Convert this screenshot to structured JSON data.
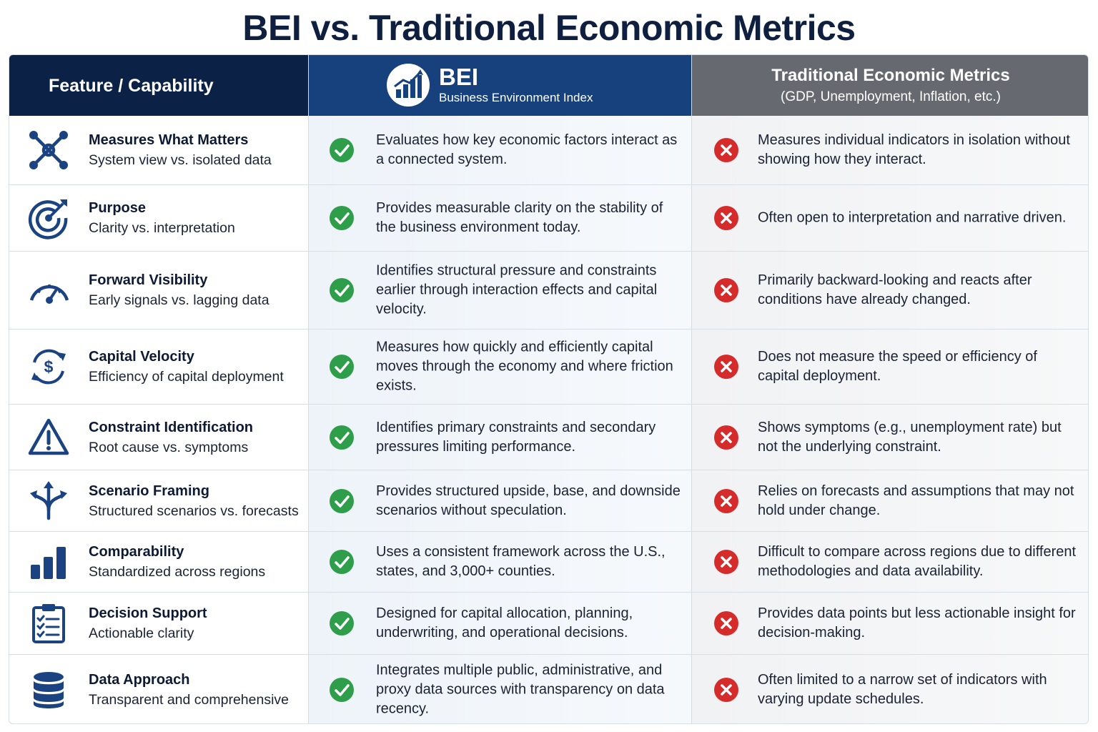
{
  "title": "BEI vs. Traditional Economic Metrics",
  "header": {
    "feature_label": "Feature / Capability",
    "bei_name": "BEI",
    "bei_subtitle": "Business Environment Index",
    "traditional_title": "Traditional Economic Metrics",
    "traditional_subtitle": "(GDP, Unemployment, Inflation, etc.)"
  },
  "colors": {
    "navy": "#0c2146",
    "bei_blue": "#17417c",
    "traditional_gray": "#66696f",
    "check_green": "#2e9e4a",
    "cross_red": "#d52b2b",
    "icon_blue": "#1b4381"
  },
  "rows": [
    {
      "icon": "network-icon",
      "title": "Measures What Matters",
      "subtitle": "System view vs. isolated data",
      "bei": "Evaluates how key economic factors interact as a connected system.",
      "traditional": "Measures individual indicators in isolation without showing how they interact."
    },
    {
      "icon": "target-icon",
      "title": "Purpose",
      "subtitle": "Clarity vs. interpretation",
      "bei": "Provides measurable clarity on the stability of the business environment today.",
      "traditional": "Often open to interpretation and narrative driven."
    },
    {
      "icon": "gauge-icon",
      "title": "Forward Visibility",
      "subtitle": "Early signals vs. lagging data",
      "bei": "Identifies structural pressure and constraints earlier through interaction effects and capital velocity.",
      "traditional": "Primarily backward-looking and reacts after conditions have already changed."
    },
    {
      "icon": "dollar-cycle-icon",
      "title": "Capital Velocity",
      "subtitle": "Efficiency of capital deployment",
      "bei": "Measures how quickly and efficiently capital moves through the economy and where friction exists.",
      "traditional": "Does not measure the speed or efficiency of capital deployment."
    },
    {
      "icon": "warning-icon",
      "title": "Constraint Identification",
      "subtitle": "Root cause vs. symptoms",
      "bei": "Identifies primary constraints and secondary pressures limiting performance.",
      "traditional": "Shows symptoms (e.g., unemployment rate) but not the underlying constraint."
    },
    {
      "icon": "split-arrows-icon",
      "title": "Scenario Framing",
      "subtitle": "Structured scenarios vs. forecasts",
      "bei": "Provides structured upside, base, and downside scenarios without speculation.",
      "traditional": "Relies on forecasts and assumptions that may not hold under change."
    },
    {
      "icon": "bar-chart-icon",
      "title": "Comparability",
      "subtitle": "Standardized across regions",
      "bei": "Uses a consistent framework across the U.S., states, and 3,000+ counties.",
      "traditional": "Difficult to compare across regions due to different methodologies and data availability."
    },
    {
      "icon": "clipboard-checklist-icon",
      "title": "Decision Support",
      "subtitle": "Actionable clarity",
      "bei": "Designed for capital allocation, planning, underwriting, and operational decisions.",
      "traditional": "Provides data points but less actionable insight for decision-making."
    },
    {
      "icon": "database-icon",
      "title": "Data Approach",
      "subtitle": "Transparent and comprehensive",
      "bei": "Integrates multiple public, administrative, and proxy data sources with transparency on data recency.",
      "traditional": "Often limited to a narrow set of indicators with varying update schedules."
    }
  ]
}
